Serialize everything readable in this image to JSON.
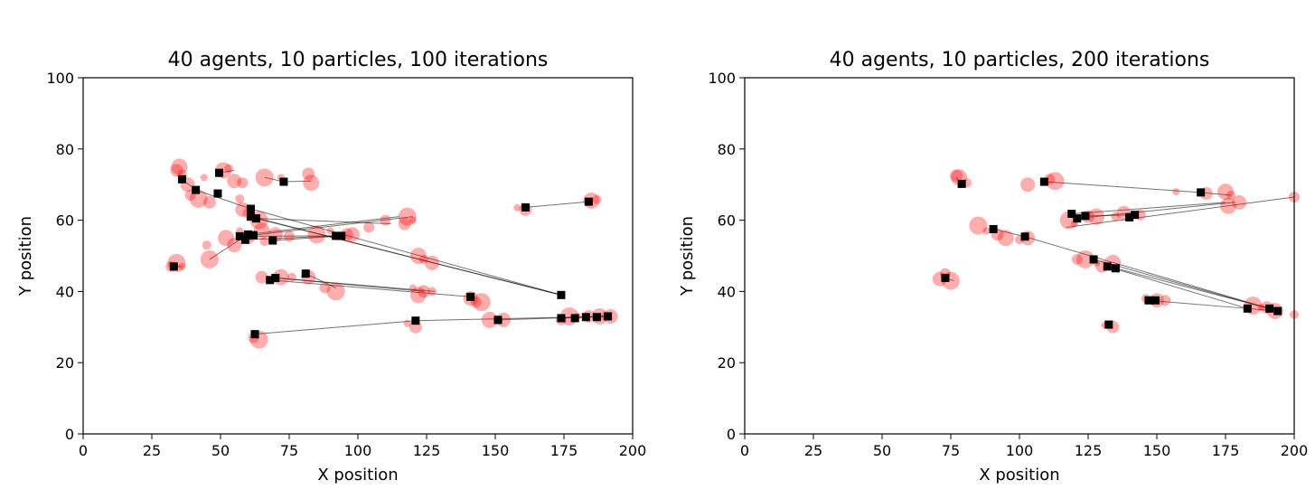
{
  "colors": {
    "particle": "#ff0000",
    "agent": "#000000",
    "link": "#000000",
    "frame": "#000000"
  },
  "chart_data": [
    {
      "type": "scatter",
      "title": "40 agents, 10 particles, 100 iterations",
      "xlabel": "X position",
      "ylabel": "Y position",
      "xlim": [
        0,
        200
      ],
      "ylim": [
        0,
        100
      ],
      "xticks": [
        "0",
        "25",
        "50",
        "75",
        "100",
        "125",
        "150",
        "175",
        "200"
      ],
      "yticks": [
        "0",
        "20",
        "40",
        "60",
        "80",
        "100"
      ],
      "grid": false,
      "agents": [
        [
          36,
          71.5
        ],
        [
          41,
          68.5
        ],
        [
          49,
          67.5
        ],
        [
          49.5,
          73.3
        ],
        [
          73,
          70.8
        ],
        [
          61,
          63.2
        ],
        [
          63,
          60.5
        ],
        [
          61,
          61
        ],
        [
          57,
          55.5
        ],
        [
          59,
          54.5
        ],
        [
          60,
          56
        ],
        [
          62,
          55.8
        ],
        [
          69,
          54.3
        ],
        [
          92,
          55.6
        ],
        [
          94,
          55.6
        ],
        [
          33,
          47
        ],
        [
          68,
          43.2
        ],
        [
          70,
          43.8
        ],
        [
          81,
          45
        ],
        [
          141,
          38.5
        ],
        [
          174,
          39
        ],
        [
          62.5,
          28
        ],
        [
          121,
          31.8
        ],
        [
          151,
          32
        ],
        [
          174,
          32.5
        ],
        [
          179,
          32.5
        ],
        [
          183,
          32.8
        ],
        [
          187,
          32.8
        ],
        [
          191,
          33
        ],
        [
          161,
          63.6
        ],
        [
          184,
          65.2
        ]
      ],
      "particles": [
        [
          34,
          74
        ],
        [
          35,
          75
        ],
        [
          36,
          73
        ],
        [
          38,
          70
        ],
        [
          39,
          67
        ],
        [
          42,
          66
        ],
        [
          44,
          72
        ],
        [
          46,
          65
        ],
        [
          51,
          74
        ],
        [
          53,
          74.5
        ],
        [
          55,
          71
        ],
        [
          58,
          70.5
        ],
        [
          66,
          72
        ],
        [
          72,
          72
        ],
        [
          82,
          73
        ],
        [
          83,
          70.5
        ],
        [
          57,
          66
        ],
        [
          58,
          63
        ],
        [
          60,
          62
        ],
        [
          64,
          60
        ],
        [
          57,
          57
        ],
        [
          60,
          55
        ],
        [
          65,
          57
        ],
        [
          66,
          54
        ],
        [
          70,
          56
        ],
        [
          75,
          55.5
        ],
        [
          85,
          56
        ],
        [
          90,
          57
        ],
        [
          96,
          56
        ],
        [
          52,
          55
        ],
        [
          45,
          53
        ],
        [
          55,
          53
        ],
        [
          110,
          60
        ],
        [
          118,
          61
        ],
        [
          120,
          60
        ],
        [
          117,
          59
        ],
        [
          122,
          50
        ],
        [
          124,
          49
        ],
        [
          127,
          48
        ],
        [
          32,
          47
        ],
        [
          34,
          48
        ],
        [
          36,
          47
        ],
        [
          65,
          44
        ],
        [
          72,
          44
        ],
        [
          76,
          44
        ],
        [
          82,
          44
        ],
        [
          88,
          41
        ],
        [
          92,
          40
        ],
        [
          120,
          41
        ],
        [
          124,
          40
        ],
        [
          122,
          39
        ],
        [
          127,
          40
        ],
        [
          141,
          38
        ],
        [
          143,
          37
        ],
        [
          145,
          37
        ],
        [
          118,
          31
        ],
        [
          121,
          30
        ],
        [
          148,
          32
        ],
        [
          151,
          32
        ],
        [
          153,
          32
        ],
        [
          174,
          32
        ],
        [
          177,
          33
        ],
        [
          180,
          33
        ],
        [
          184,
          33
        ],
        [
          188,
          33
        ],
        [
          190,
          33
        ],
        [
          192,
          33
        ],
        [
          62,
          27
        ],
        [
          64,
          26.5
        ],
        [
          158,
          63.5
        ],
        [
          161,
          63
        ],
        [
          185,
          65.5
        ],
        [
          187,
          65.8
        ],
        [
          98,
          56
        ],
        [
          104,
          58
        ],
        [
          46,
          49
        ]
      ],
      "links": [
        [
          [
            36,
            71.5
          ],
          [
            41,
            68.5
          ]
        ],
        [
          [
            41,
            68.5
          ],
          [
            61,
            63.2
          ]
        ],
        [
          [
            49.5,
            73.3
          ],
          [
            55,
            74
          ]
        ],
        [
          [
            73,
            70.8
          ],
          [
            66,
            72
          ]
        ],
        [
          [
            73,
            70.8
          ],
          [
            83,
            71
          ]
        ],
        [
          [
            61,
            63.2
          ],
          [
            174,
            39
          ]
        ],
        [
          [
            63,
            60.5
          ],
          [
            174,
            39
          ]
        ],
        [
          [
            61,
            61
          ],
          [
            174,
            39
          ]
        ],
        [
          [
            63,
            60.5
          ],
          [
            112,
            59
          ]
        ],
        [
          [
            57,
            55.5
          ],
          [
            94,
            55.6
          ]
        ],
        [
          [
            59,
            54.5
          ],
          [
            92,
            55.6
          ]
        ],
        [
          [
            60,
            56
          ],
          [
            115,
            61
          ]
        ],
        [
          [
            62,
            55.8
          ],
          [
            120,
            61
          ]
        ],
        [
          [
            69,
            54.3
          ],
          [
            94,
            55.6
          ]
        ],
        [
          [
            46,
            49
          ],
          [
            60,
            56
          ]
        ],
        [
          [
            68,
            43.2
          ],
          [
            141,
            38.5
          ]
        ],
        [
          [
            70,
            43.8
          ],
          [
            124,
            40
          ]
        ],
        [
          [
            70,
            43.8
          ],
          [
            128,
            40
          ]
        ],
        [
          [
            81,
            45
          ],
          [
            92,
            41
          ]
        ],
        [
          [
            62.5,
            28
          ],
          [
            121,
            31.8
          ]
        ],
        [
          [
            121,
            31.8
          ],
          [
            191,
            33
          ]
        ],
        [
          [
            151,
            32
          ],
          [
            191,
            33
          ]
        ],
        [
          [
            174,
            32.5
          ],
          [
            191,
            33
          ]
        ],
        [
          [
            161,
            63.6
          ],
          [
            184,
            65.2
          ]
        ],
        [
          [
            33,
            47
          ],
          [
            36,
            47
          ]
        ]
      ]
    },
    {
      "type": "scatter",
      "title": "40 agents, 10 particles, 200 iterations",
      "xlabel": "X position",
      "ylabel": "Y position",
      "xlim": [
        0,
        200
      ],
      "ylim": [
        0,
        100
      ],
      "xticks": [
        "0",
        "25",
        "50",
        "75",
        "100",
        "125",
        "150",
        "175",
        "200"
      ],
      "yticks": [
        "0",
        "20",
        "40",
        "60",
        "80",
        "100"
      ],
      "grid": false,
      "agents": [
        [
          79,
          70.2
        ],
        [
          109,
          70.8
        ],
        [
          166,
          67.8
        ],
        [
          119,
          61.8
        ],
        [
          121,
          60.5
        ],
        [
          124,
          61.2
        ],
        [
          140,
          60.8
        ],
        [
          142,
          61.5
        ],
        [
          90.5,
          57.5
        ],
        [
          102,
          55.4
        ],
        [
          127,
          49
        ],
        [
          132,
          47
        ],
        [
          135,
          46.5
        ],
        [
          147,
          37.5
        ],
        [
          149.5,
          37.5
        ],
        [
          183,
          35.2
        ],
        [
          191,
          35.2
        ],
        [
          194,
          34.5
        ],
        [
          73,
          43.8
        ],
        [
          132.5,
          30.7
        ]
      ],
      "particles": [
        [
          77,
          72.5
        ],
        [
          78,
          72
        ],
        [
          81,
          70.5
        ],
        [
          103,
          70
        ],
        [
          111,
          71.5
        ],
        [
          113,
          71
        ],
        [
          157,
          68
        ],
        [
          168,
          67.5
        ],
        [
          175,
          68
        ],
        [
          177,
          67
        ],
        [
          180,
          65
        ],
        [
          200,
          66.5
        ],
        [
          118,
          60
        ],
        [
          120,
          59
        ],
        [
          125,
          61
        ],
        [
          128,
          61
        ],
        [
          135,
          61
        ],
        [
          138,
          62
        ],
        [
          144,
          61.5
        ],
        [
          85,
          58.5
        ],
        [
          88,
          57
        ],
        [
          92,
          56
        ],
        [
          95,
          55
        ],
        [
          100,
          54.5
        ],
        [
          103,
          55
        ],
        [
          121,
          49
        ],
        [
          124,
          49
        ],
        [
          128,
          48
        ],
        [
          130,
          47
        ],
        [
          134,
          48
        ],
        [
          146,
          38
        ],
        [
          150,
          37.5
        ],
        [
          153,
          37.5
        ],
        [
          185,
          36
        ],
        [
          188,
          35.5
        ],
        [
          190,
          35.5
        ],
        [
          193,
          34.5
        ],
        [
          200,
          33.5
        ],
        [
          71,
          43.5
        ],
        [
          73,
          45
        ],
        [
          75,
          43
        ],
        [
          131,
          30.5
        ],
        [
          134,
          30
        ],
        [
          176,
          64
        ]
      ],
      "links": [
        [
          [
            79,
            70.2
          ],
          [
            77,
            72
          ]
        ],
        [
          [
            109,
            70.8
          ],
          [
            166,
            67.8
          ]
        ],
        [
          [
            166,
            67.8
          ],
          [
            177,
            67
          ]
        ],
        [
          [
            119,
            61.8
          ],
          [
            175,
            65
          ]
        ],
        [
          [
            121,
            60.5
          ],
          [
            178,
            65
          ]
        ],
        [
          [
            117,
            58
          ],
          [
            200,
            66.5
          ]
        ],
        [
          [
            124,
            61.2
          ],
          [
            142,
            61.5
          ]
        ],
        [
          [
            90.5,
            57.5
          ],
          [
            102,
            55.4
          ]
        ],
        [
          [
            102,
            55.4
          ],
          [
            191,
            35.2
          ]
        ],
        [
          [
            127,
            49
          ],
          [
            194,
            34.5
          ]
        ],
        [
          [
            132,
            47
          ],
          [
            183,
            35.2
          ]
        ],
        [
          [
            135,
            46.5
          ],
          [
            191,
            35.2
          ]
        ],
        [
          [
            147,
            37.5
          ],
          [
            183,
            35.2
          ]
        ],
        [
          [
            183,
            35.2
          ],
          [
            194,
            34.5
          ]
        ],
        [
          [
            73,
            43.8
          ],
          [
            76,
            43
          ]
        ],
        [
          [
            132.5,
            30.7
          ],
          [
            134,
            30
          ]
        ]
      ]
    }
  ]
}
